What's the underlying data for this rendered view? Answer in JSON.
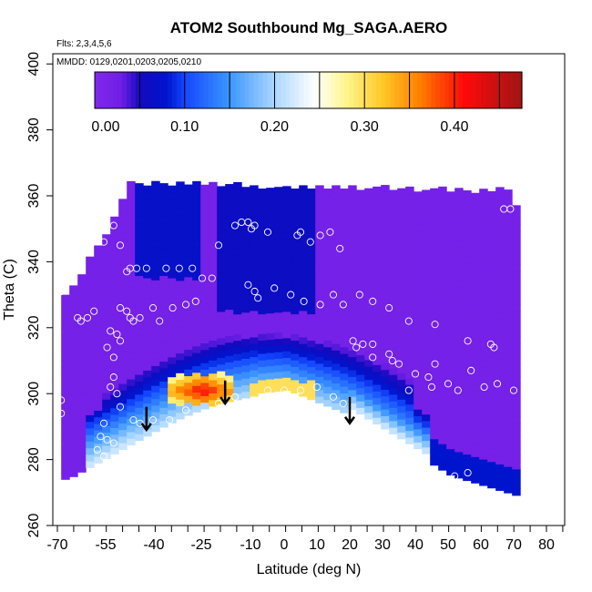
{
  "chart_data": {
    "type": "heatmap",
    "title": "ATOM2 Southbound Mg_SAGA.AERO",
    "subtitle_lines": [
      "Flts: 2,3,4,5,6",
      "MMDD: 0129,0201,0203,0205,0210"
    ],
    "xlabel": "Latitude (deg N)",
    "ylabel": "Theta (C)",
    "xlim": [
      -70,
      80
    ],
    "ylim": [
      260,
      400
    ],
    "x_ticks": [
      -70,
      -55,
      -40,
      -25,
      -10,
      0,
      10,
      20,
      30,
      40,
      50,
      60,
      70,
      80
    ],
    "x_tick_labels": [
      "-70",
      "-55",
      "-40",
      "-25",
      "-10",
      "0",
      "10",
      "20",
      "30",
      "40",
      "50",
      "60",
      "70",
      "80"
    ],
    "y_ticks": [
      260,
      280,
      300,
      320,
      340,
      360,
      380,
      400
    ],
    "y_tick_labels": [
      "260",
      "280",
      "300",
      "320",
      "340",
      "360",
      "380",
      "400"
    ],
    "colorbar": {
      "range": [
        0,
        0.475
      ],
      "ticks": [
        0.0,
        0.1,
        0.2,
        0.3,
        0.4
      ],
      "tick_labels": [
        "0.00",
        "0.10",
        "0.20",
        "0.30",
        "0.40"
      ],
      "boundaries": [
        0.05,
        0.1,
        0.15,
        0.2,
        0.25,
        0.3,
        0.35,
        0.4,
        0.45
      ],
      "colors": [
        "#7a1fe6",
        "#1a1ad0",
        "#1f62ff",
        "#6fb4ff",
        "#ffffff",
        "#ffee70",
        "#ffa020",
        "#ff1010",
        "#a51a1a"
      ]
    },
    "field_max_region": {
      "lat_range": [
        -30,
        -15
      ],
      "theta_range": [
        298,
        305
      ],
      "value": 0.43
    },
    "arrows": [
      {
        "lat": -42,
        "theta_top": 296,
        "theta_tip": 289
      },
      {
        "lat": -18,
        "theta_top": 304,
        "theta_tip": 297
      },
      {
        "lat": 20,
        "theta_top": 299,
        "theta_tip": 291
      }
    ],
    "sample_points": [
      [
        -68,
        337
      ],
      [
        -67,
        335
      ],
      [
        -68,
        331
      ],
      [
        -63,
        323
      ],
      [
        -62,
        322
      ],
      [
        -60,
        323
      ],
      [
        -58,
        325
      ],
      [
        -55,
        353
      ],
      [
        -52,
        351
      ],
      [
        -55,
        346
      ],
      [
        -50,
        345
      ],
      [
        -48,
        337
      ],
      [
        -47,
        338
      ],
      [
        -45,
        338
      ],
      [
        -42,
        338
      ],
      [
        -38,
        322
      ],
      [
        -36,
        338
      ],
      [
        -32,
        338
      ],
      [
        -28,
        338
      ],
      [
        -25,
        335
      ],
      [
        -50,
        326
      ],
      [
        -48,
        325
      ],
      [
        -47,
        323
      ],
      [
        -46,
        322
      ],
      [
        -44,
        323
      ],
      [
        -40,
        326
      ],
      [
        -34,
        326
      ],
      [
        -30,
        327
      ],
      [
        -27,
        328
      ],
      [
        -22,
        335
      ],
      [
        -20,
        345
      ],
      [
        -15,
        351
      ],
      [
        -13,
        352
      ],
      [
        -11,
        352
      ],
      [
        -10,
        350
      ],
      [
        -9,
        351
      ],
      [
        -5,
        349
      ],
      [
        4,
        348
      ],
      [
        5,
        349
      ],
      [
        8,
        346
      ],
      [
        11,
        348
      ],
      [
        14,
        349
      ],
      [
        17,
        344
      ],
      [
        -9,
        331
      ],
      [
        -11,
        333
      ],
      [
        -8,
        329
      ],
      [
        -3,
        332
      ],
      [
        2,
        330
      ],
      [
        6,
        328
      ],
      [
        11,
        327
      ],
      [
        15,
        330
      ],
      [
        18,
        327
      ],
      [
        23,
        330
      ],
      [
        27,
        328
      ],
      [
        32,
        326
      ],
      [
        38,
        322
      ],
      [
        46,
        321
      ],
      [
        56,
        316
      ],
      [
        63,
        315
      ],
      [
        64,
        314
      ],
      [
        67,
        356
      ],
      [
        69,
        356
      ],
      [
        -53,
        319
      ],
      [
        -51,
        318
      ],
      [
        -50,
        316
      ],
      [
        -54,
        314
      ],
      [
        -52,
        311
      ],
      [
        -52,
        305
      ],
      [
        -53,
        302
      ],
      [
        -51,
        300
      ],
      [
        -50,
        296
      ],
      [
        -55,
        291
      ],
      [
        -54,
        286
      ],
      [
        -52,
        285
      ],
      [
        -56,
        287
      ],
      [
        -57,
        283
      ],
      [
        -55,
        281
      ],
      [
        -68,
        298
      ],
      [
        -68,
        294
      ],
      [
        -46,
        292
      ],
      [
        -44,
        291
      ],
      [
        -40,
        292
      ],
      [
        -35,
        292
      ],
      [
        -30,
        295
      ],
      [
        -20,
        297
      ],
      [
        -15,
        299
      ],
      [
        -5,
        301
      ],
      [
        0,
        301
      ],
      [
        5,
        301
      ],
      [
        10,
        302
      ],
      [
        15,
        299
      ],
      [
        18,
        297
      ],
      [
        22,
        292
      ],
      [
        25,
        289
      ],
      [
        28,
        286
      ],
      [
        30,
        284
      ],
      [
        33,
        282
      ],
      [
        38,
        280
      ],
      [
        45,
        277
      ],
      [
        52,
        275
      ],
      [
        56,
        276
      ],
      [
        22,
        314
      ],
      [
        24,
        315
      ],
      [
        27,
        315
      ],
      [
        32,
        312
      ],
      [
        35,
        309
      ],
      [
        40,
        306
      ],
      [
        44,
        305
      ],
      [
        46,
        309
      ],
      [
        50,
        303
      ],
      [
        53,
        301
      ],
      [
        57,
        307
      ],
      [
        61,
        302
      ],
      [
        65,
        303
      ],
      [
        70,
        301
      ],
      [
        21,
        316
      ],
      [
        27,
        311
      ],
      [
        33,
        310
      ],
      [
        38,
        301
      ],
      [
        45,
        302
      ]
    ]
  }
}
